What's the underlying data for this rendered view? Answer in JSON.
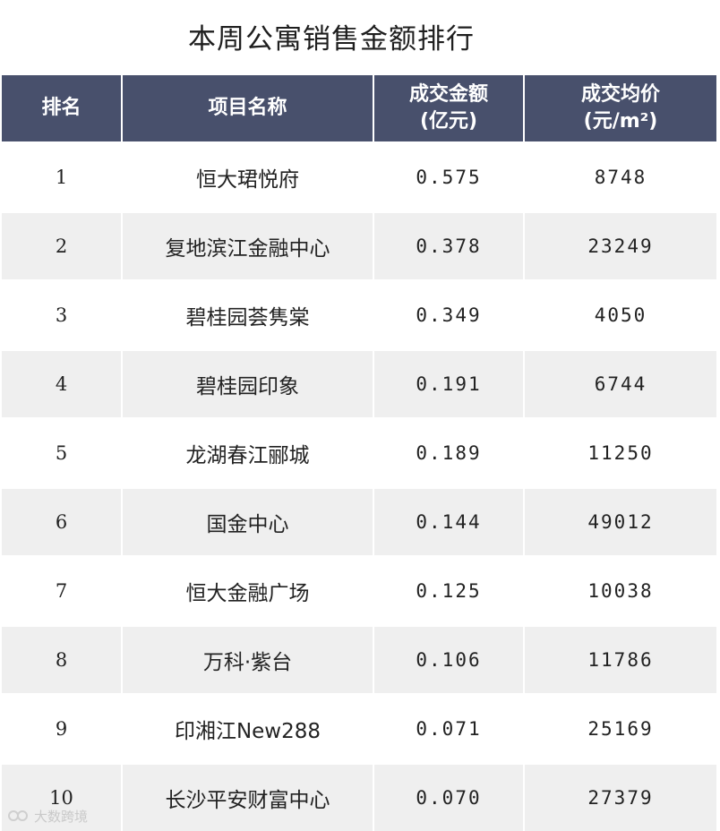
{
  "title": "本周公寓销售金额排行",
  "columns": [
    "排名",
    "项目名称",
    "成交金额\n(亿元)",
    "成交均价\n(元/m²)"
  ],
  "chart_data": {
    "type": "table",
    "title": "本周公寓销售金额排行",
    "columns": [
      "排名",
      "项目名称",
      "成交金额(亿元)",
      "成交均价(元/m²)"
    ],
    "rows": [
      {
        "rank": "1",
        "name": "恒大珺悦府",
        "amount": "0.575",
        "price": "8748"
      },
      {
        "rank": "2",
        "name": "复地滨江金融中心",
        "amount": "0.378",
        "price": "23249"
      },
      {
        "rank": "3",
        "name": "碧桂园荟隽棠",
        "amount": "0.349",
        "price": "4050"
      },
      {
        "rank": "4",
        "name": "碧桂园印象",
        "amount": "0.191",
        "price": "6744"
      },
      {
        "rank": "5",
        "name": "龙湖春江郦城",
        "amount": "0.189",
        "price": "11250"
      },
      {
        "rank": "6",
        "name": "国金中心",
        "amount": "0.144",
        "price": "49012"
      },
      {
        "rank": "7",
        "name": "恒大金融广场",
        "amount": "0.125",
        "price": "10038"
      },
      {
        "rank": "8",
        "name": "万科·紫台",
        "amount": "0.106",
        "price": "11786"
      },
      {
        "rank": "9",
        "name": "印湘江New288",
        "amount": "0.071",
        "price": "25169"
      },
      {
        "rank": "10",
        "name": "长沙平安财富中心",
        "amount": "0.070",
        "price": "27379"
      }
    ]
  },
  "watermark": "大数跨境",
  "colors": {
    "header_bg": "#48506c",
    "stripe": "#efefef"
  }
}
